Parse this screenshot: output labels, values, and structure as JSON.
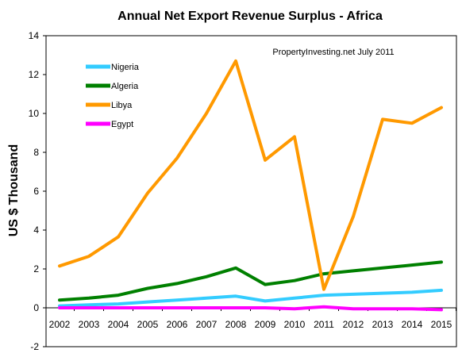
{
  "chart_data": {
    "type": "line",
    "title": "Annual Net Export Revenue Surplus - Africa",
    "annotation": "PropertyInvesting.net  July 2011",
    "xlabel": "",
    "ylabel": "US $ Thousand",
    "ylim": [
      -2,
      14
    ],
    "ytick_step": 2,
    "grid": false,
    "legend_position": "top-left",
    "categories": [
      "2002",
      "2003",
      "2004",
      "2005",
      "2006",
      "2007",
      "2008",
      "2009",
      "2010",
      "2011",
      "2012",
      "2013",
      "2014",
      "2015"
    ],
    "series": [
      {
        "name": "Nigeria",
        "color": "#33ccff",
        "values": [
          0.1,
          0.15,
          0.2,
          0.3,
          0.4,
          0.5,
          0.6,
          0.35,
          0.5,
          0.65,
          0.7,
          0.75,
          0.8,
          0.9
        ]
      },
      {
        "name": "Algeria",
        "color": "#008000",
        "values": [
          0.4,
          0.5,
          0.65,
          1.0,
          1.25,
          1.6,
          2.05,
          1.2,
          1.4,
          1.75,
          1.9,
          2.05,
          2.2,
          2.35
        ]
      },
      {
        "name": "Libya",
        "color": "#ff9900",
        "values": [
          2.15,
          2.65,
          3.65,
          5.9,
          7.7,
          10.0,
          12.7,
          7.6,
          8.8,
          0.95,
          4.7,
          9.7,
          9.5,
          10.3
        ]
      },
      {
        "name": "Egypt",
        "color": "#ff00ff",
        "values": [
          0.0,
          0.0,
          0.0,
          0.0,
          0.0,
          0.0,
          0.0,
          0.0,
          -0.05,
          0.05,
          -0.05,
          -0.05,
          -0.05,
          -0.1
        ]
      }
    ]
  }
}
